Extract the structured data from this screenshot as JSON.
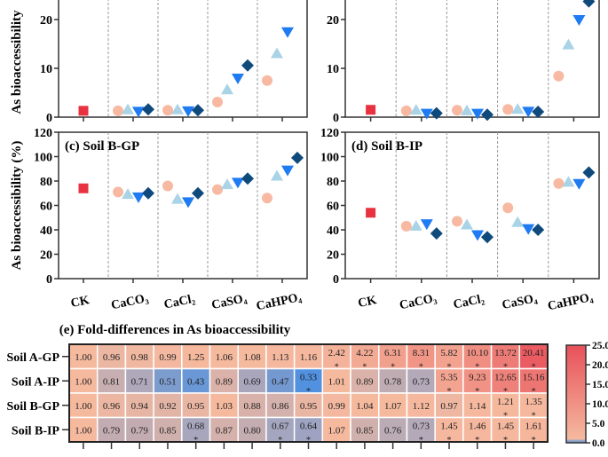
{
  "colors": {
    "circle": "#f8b9a2",
    "triangle_up": "#a9d3e6",
    "triangle_down": "#1f7bf2",
    "diamond": "#0f4a7c",
    "square": "#e8323f",
    "divider": "#999999"
  },
  "chart_data": [
    {
      "type": "scatter",
      "panel": "a",
      "title": "",
      "ylabel": "As bioaccessibility",
      "ylim": [
        0,
        24
      ],
      "yticks": [
        0,
        10,
        20
      ],
      "categories": [
        "CK",
        "CaCO₃",
        "CaCl₂",
        "CaSO₄",
        "CaHPO₄"
      ],
      "show_xticklabels": false,
      "ck": 1.3,
      "series": [
        {
          "marker": "circle",
          "values": [
            null,
            1.3,
            1.4,
            3.1,
            7.5
          ]
        },
        {
          "marker": "triangle_up",
          "values": [
            null,
            1.5,
            1.5,
            5.6,
            13.0
          ]
        },
        {
          "marker": "triangle_down",
          "values": [
            null,
            1.2,
            1.3,
            8.0,
            17.5
          ]
        },
        {
          "marker": "diamond",
          "values": [
            null,
            1.6,
            1.4,
            10.6,
            null
          ]
        }
      ]
    },
    {
      "type": "scatter",
      "panel": "b",
      "title": "",
      "ylabel": "",
      "ylim": [
        0,
        24
      ],
      "yticks": [
        0,
        10,
        20
      ],
      "categories": [
        "CK",
        "CaCO₃",
        "CaCl₂",
        "CaSO₄",
        "CaHPO₄"
      ],
      "show_xticklabels": false,
      "ck": 1.5,
      "series": [
        {
          "marker": "circle",
          "values": [
            null,
            1.3,
            1.4,
            1.6,
            8.4
          ]
        },
        {
          "marker": "triangle_up",
          "values": [
            null,
            1.4,
            1.3,
            1.6,
            14.8
          ]
        },
        {
          "marker": "triangle_down",
          "values": [
            null,
            0.8,
            0.8,
            1.2,
            20.0
          ]
        },
        {
          "marker": "diamond",
          "values": [
            null,
            0.8,
            0.5,
            1.1,
            23.7
          ]
        }
      ]
    },
    {
      "type": "scatter",
      "panel": "c",
      "title": "(c) Soil B-GP",
      "ylabel": "As bioaccessibility (%)",
      "ylim": [
        0,
        120
      ],
      "yticks": [
        0,
        20,
        40,
        60,
        80,
        100,
        120
      ],
      "categories": [
        "CK",
        "CaCO₃",
        "CaCl₂",
        "CaSO₄",
        "CaHPO₄"
      ],
      "show_xticklabels": true,
      "ck": 74,
      "series": [
        {
          "marker": "circle",
          "values": [
            null,
            71,
            76,
            73,
            66
          ]
        },
        {
          "marker": "triangle_up",
          "values": [
            null,
            69,
            65,
            77,
            84
          ]
        },
        {
          "marker": "triangle_down",
          "values": [
            null,
            67,
            63,
            79,
            89
          ]
        },
        {
          "marker": "diamond",
          "values": [
            null,
            70,
            70,
            82,
            99
          ]
        }
      ]
    },
    {
      "type": "scatter",
      "panel": "d",
      "title": "(d) Soil B-IP",
      "ylabel": "",
      "ylim": [
        0,
        120
      ],
      "yticks": [
        0,
        20,
        40,
        60,
        80,
        100,
        120
      ],
      "categories": [
        "CK",
        "CaCO₃",
        "CaCl₂",
        "CaSO₄",
        "CaHPO₄"
      ],
      "show_xticklabels": true,
      "ck": 54,
      "series": [
        {
          "marker": "circle",
          "values": [
            null,
            43,
            47,
            58,
            78
          ]
        },
        {
          "marker": "triangle_up",
          "values": [
            null,
            43,
            44,
            46,
            79
          ]
        },
        {
          "marker": "triangle_down",
          "values": [
            null,
            45,
            36,
            41,
            78
          ]
        },
        {
          "marker": "diamond",
          "values": [
            null,
            37,
            34,
            40,
            87
          ]
        }
      ]
    },
    {
      "type": "heatmap",
      "panel": "e",
      "title": "(e) Fold-differences in As bioaccessibility",
      "rows": [
        "Soil A-GP",
        "Soil A-IP",
        "Soil B-GP",
        "Soil B-IP"
      ],
      "values": [
        [
          1.0,
          0.96,
          0.98,
          0.99,
          1.25,
          1.06,
          1.08,
          1.13,
          1.16,
          2.42,
          4.22,
          6.31,
          8.31,
          5.82,
          10.1,
          13.72,
          20.41
        ],
        [
          1.0,
          0.81,
          0.71,
          0.51,
          0.43,
          0.89,
          0.69,
          0.47,
          0.33,
          1.01,
          0.89,
          0.78,
          0.73,
          5.35,
          9.23,
          12.65,
          15.16
        ],
        [
          1.0,
          0.96,
          0.94,
          0.92,
          0.95,
          1.03,
          0.88,
          0.86,
          0.95,
          0.99,
          1.04,
          1.07,
          1.12,
          0.97,
          1.14,
          1.21,
          1.35
        ],
        [
          1.0,
          0.79,
          0.79,
          0.85,
          0.68,
          0.87,
          0.8,
          0.67,
          0.64,
          1.07,
          0.85,
          0.76,
          0.73,
          1.45,
          1.46,
          1.45,
          1.61
        ]
      ],
      "significant": [
        [
          0,
          0,
          0,
          0,
          0,
          0,
          0,
          0,
          0,
          1,
          1,
          1,
          1,
          1,
          1,
          1,
          1
        ],
        [
          0,
          0,
          0,
          0,
          0,
          0,
          0,
          0,
          1,
          0,
          0,
          0,
          0,
          1,
          1,
          1,
          1
        ],
        [
          0,
          0,
          0,
          0,
          0,
          0,
          0,
          0,
          0,
          0,
          0,
          0,
          0,
          0,
          0,
          1,
          1
        ],
        [
          0,
          0,
          0,
          0,
          1,
          0,
          0,
          1,
          1,
          0,
          0,
          0,
          1,
          1,
          1,
          1,
          1
        ]
      ],
      "significance_mark": "*",
      "colorbar": {
        "range": [
          0,
          25
        ],
        "ticks": [
          "0.0",
          "5.0",
          "10.0",
          "15.0",
          "20.0",
          "25.0"
        ],
        "low": "#4a8fe2",
        "mid": "#f5b99e",
        "high": "#e8505a"
      }
    }
  ]
}
